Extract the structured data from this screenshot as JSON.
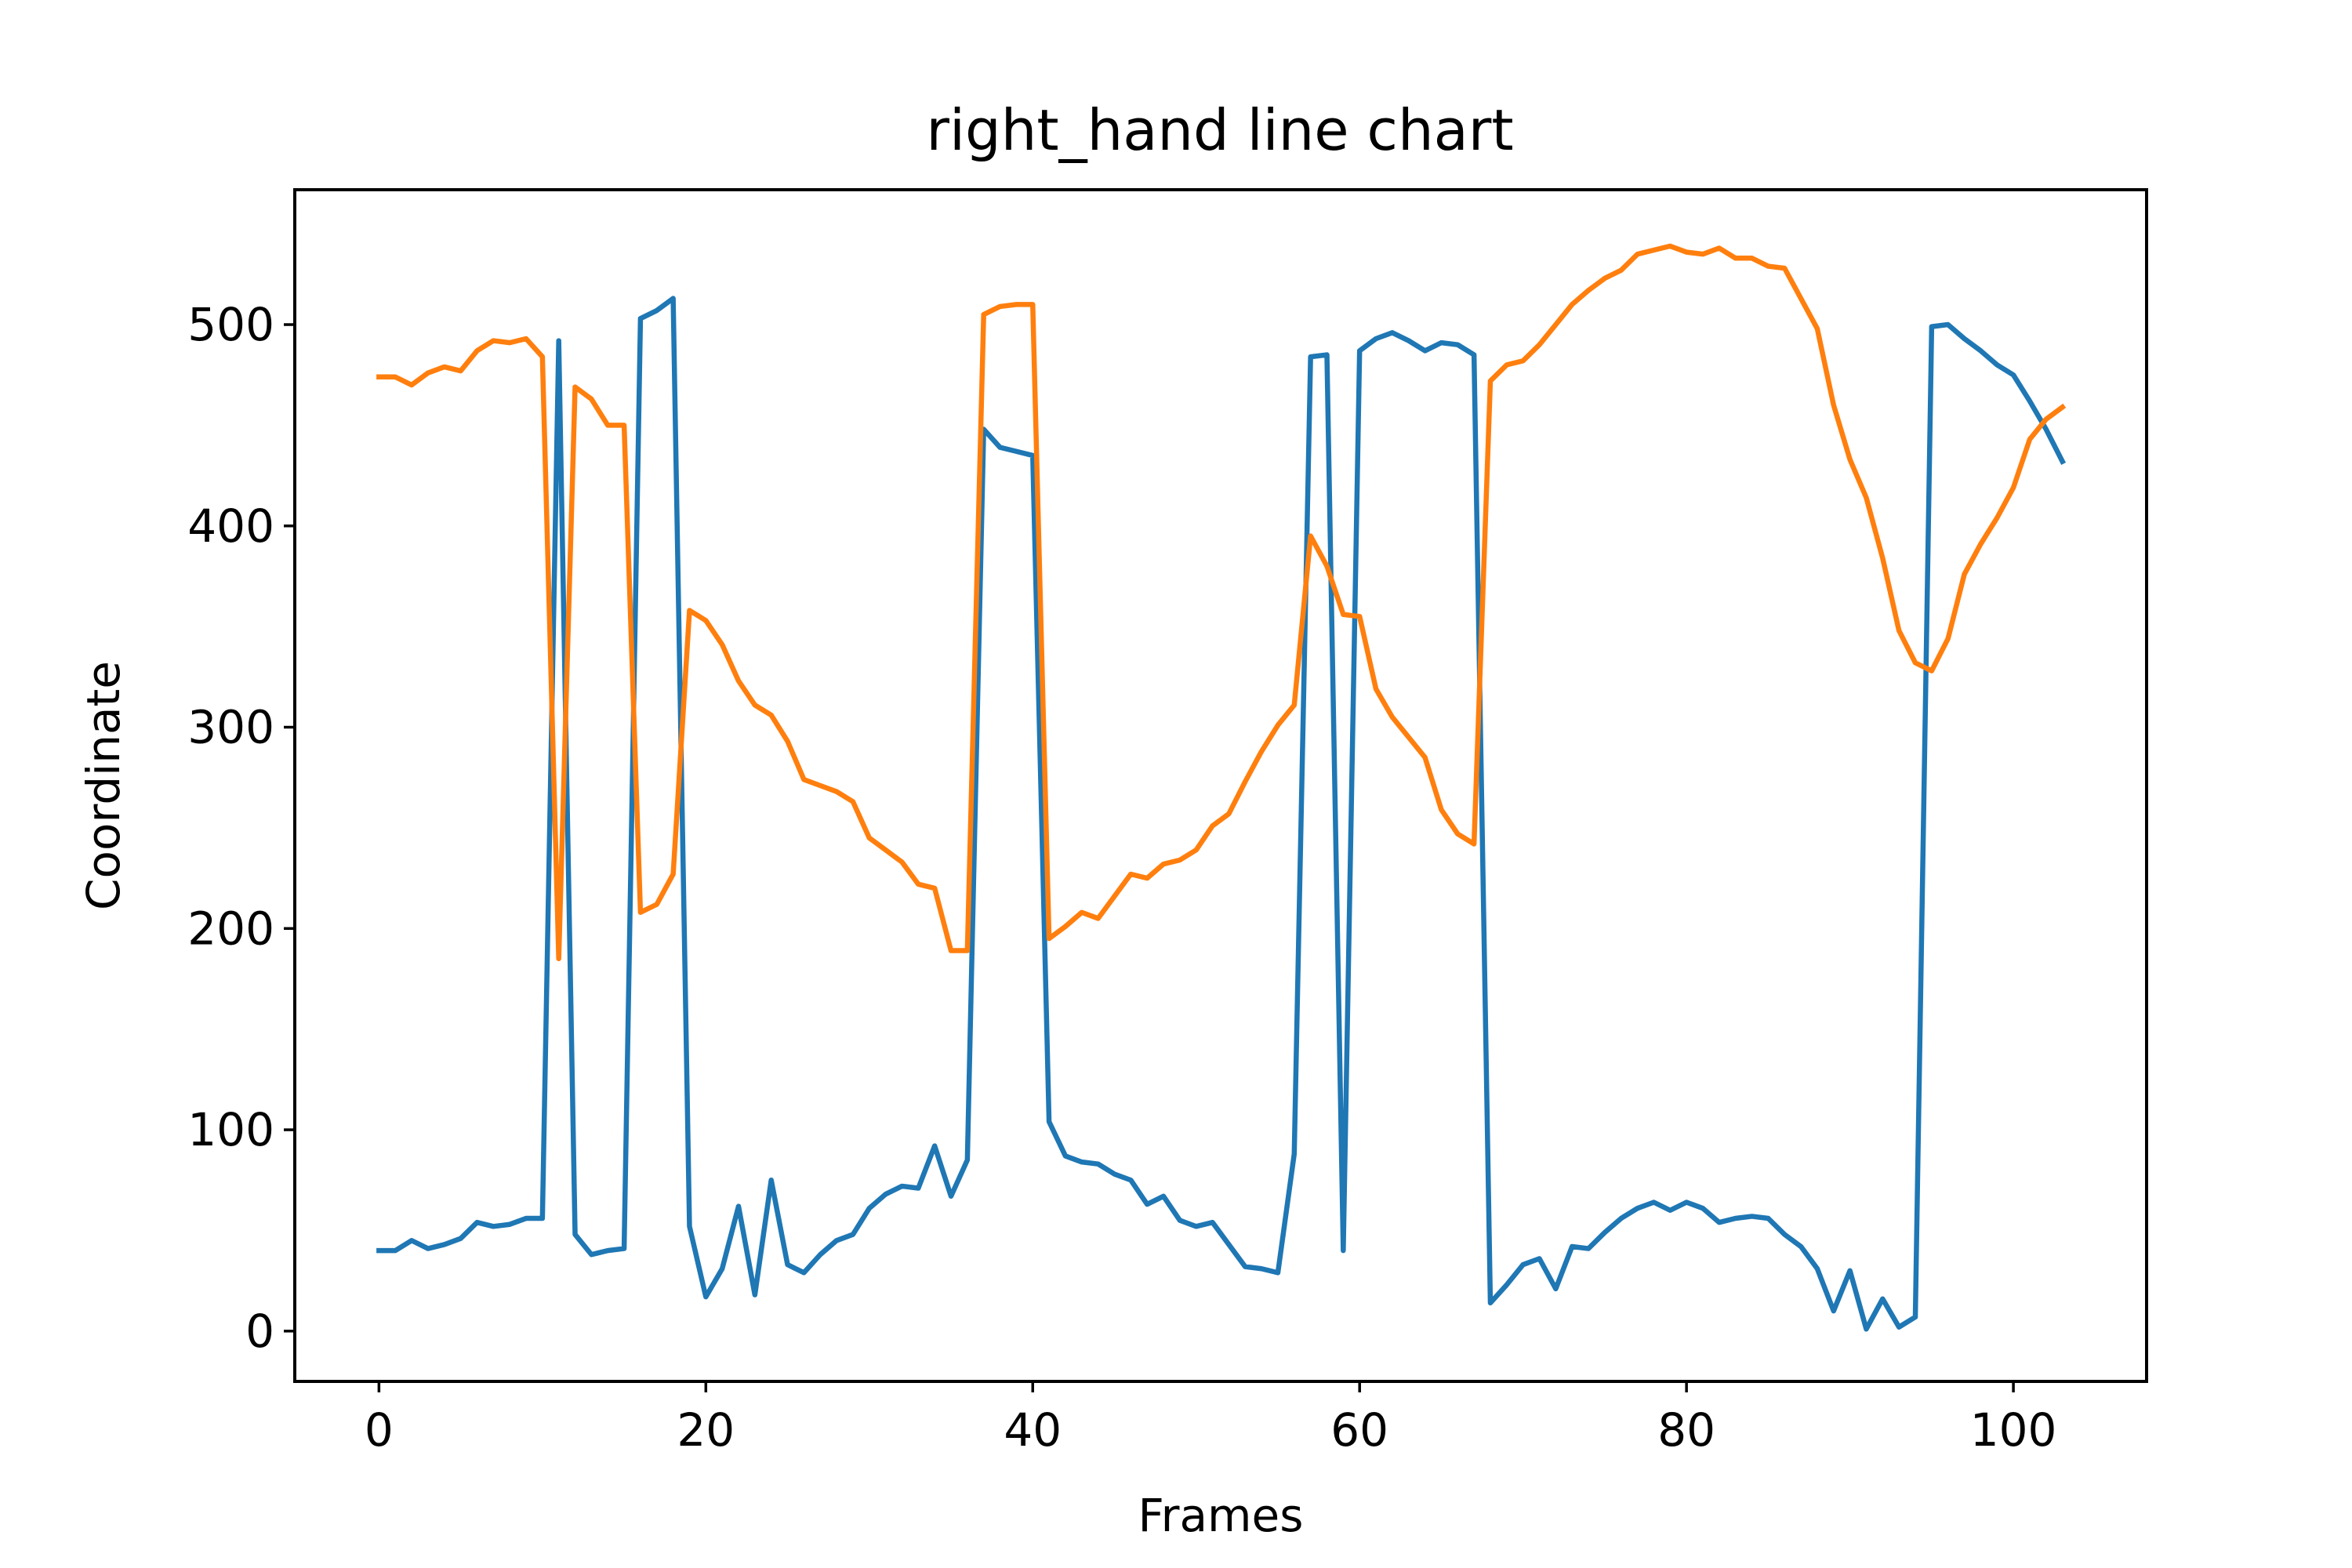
{
  "chart_data": {
    "type": "line",
    "title": "right_hand line chart",
    "xlabel": "Frames",
    "ylabel": "Coordinate",
    "xlim": [
      -5.15,
      108.15
    ],
    "ylim": [
      -25,
      567
    ],
    "xticks": [
      0,
      20,
      40,
      60,
      80,
      100
    ],
    "yticks": [
      0,
      100,
      200,
      300,
      400,
      500
    ],
    "grid": false,
    "legend": "none",
    "x": [
      0,
      1,
      2,
      3,
      4,
      5,
      6,
      7,
      8,
      9,
      10,
      11,
      12,
      13,
      14,
      15,
      16,
      17,
      18,
      19,
      20,
      21,
      22,
      23,
      24,
      25,
      26,
      27,
      28,
      29,
      30,
      31,
      32,
      33,
      34,
      35,
      36,
      37,
      38,
      39,
      40,
      41,
      42,
      43,
      44,
      45,
      46,
      47,
      48,
      49,
      50,
      51,
      52,
      53,
      54,
      55,
      56,
      57,
      58,
      59,
      60,
      61,
      62,
      63,
      64,
      65,
      66,
      67,
      68,
      69,
      70,
      71,
      72,
      73,
      74,
      75,
      76,
      77,
      78,
      79,
      80,
      81,
      82,
      83,
      84,
      85,
      86,
      87,
      88,
      89,
      90,
      91,
      92,
      93,
      94,
      95,
      96,
      97,
      98,
      99,
      100,
      101,
      102,
      103
    ],
    "series": [
      {
        "color": "#1f77b4",
        "values": [
          40,
          40,
          45,
          41,
          43,
          46,
          54,
          52,
          53,
          56,
          56,
          492,
          48,
          38,
          40,
          41,
          503,
          507,
          513,
          52,
          17,
          31,
          62,
          18,
          75,
          33,
          29,
          38,
          45,
          48,
          61,
          68,
          72,
          71,
          92,
          67,
          85,
          448,
          439,
          437,
          435,
          104,
          87,
          84,
          83,
          78,
          75,
          63,
          67,
          55,
          52,
          54,
          43,
          32,
          31,
          29,
          88,
          484,
          485,
          40,
          487,
          493,
          496,
          492,
          487,
          491,
          490,
          485,
          14,
          23,
          33,
          36,
          21,
          42,
          41,
          49,
          56,
          61,
          64,
          60,
          64,
          61,
          54,
          56,
          57,
          56,
          48,
          42,
          31,
          10,
          30,
          1,
          16,
          2,
          7,
          499,
          500,
          493,
          487,
          480,
          475,
          462,
          448,
          432
        ]
      },
      {
        "color": "#ff7f0e",
        "values": [
          474,
          474,
          470,
          476,
          479,
          477,
          487,
          492,
          491,
          493,
          484,
          185,
          469,
          463,
          450,
          450,
          208,
          212,
          227,
          358,
          353,
          341,
          323,
          311,
          306,
          293,
          274,
          271,
          268,
          263,
          245,
          239,
          233,
          222,
          220,
          189,
          189,
          505,
          509,
          510,
          510,
          195,
          201,
          208,
          205,
          216,
          227,
          225,
          232,
          234,
          239,
          251,
          257,
          273,
          288,
          301,
          311,
          395,
          380,
          356,
          355,
          319,
          305,
          295,
          285,
          259,
          247,
          242,
          472,
          480,
          482,
          490,
          500,
          510,
          517,
          523,
          527,
          535,
          537,
          539,
          536,
          535,
          538,
          533,
          533,
          529,
          528,
          513,
          498,
          460,
          433,
          414,
          384,
          348,
          332,
          328,
          344,
          376,
          391,
          404,
          419,
          443,
          453,
          459
        ]
      }
    ]
  }
}
